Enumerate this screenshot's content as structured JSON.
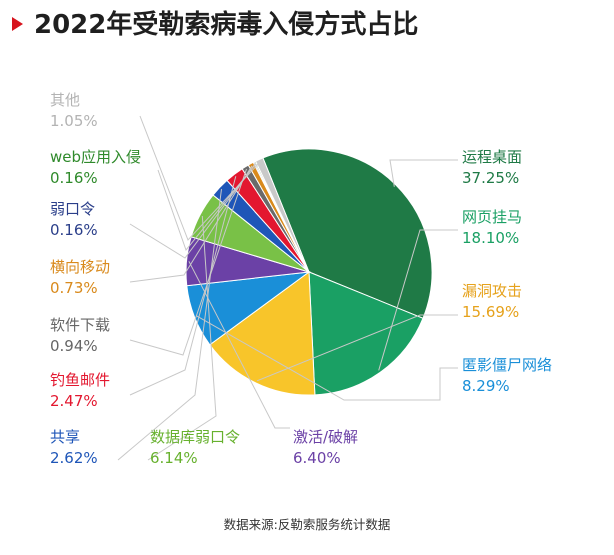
{
  "title": "2022年受勒索病毒入侵方式占比",
  "footer": "数据来源:反勒索服务统计数据",
  "chart_data": {
    "type": "pie",
    "title": "2022年受勒索病毒入侵方式占比",
    "slices": [
      {
        "name": "运程桌面",
        "value": 37.25,
        "label": "37.25%",
        "color": "#1f7a46",
        "label_color": "#1f7a46"
      },
      {
        "name": "网页挂马",
        "value": 18.1,
        "label": "18.10%",
        "color": "#1aa064",
        "label_color": "#1aa064"
      },
      {
        "name": "漏洞攻击",
        "value": 15.69,
        "label": "15.69%",
        "color": "#f8c52a",
        "label_color": "#e6a21c"
      },
      {
        "name": "匿影僵尸网络",
        "value": 8.29,
        "label": "8.29%",
        "color": "#1a8fd8",
        "label_color": "#1a8fd8"
      },
      {
        "name": "激活/破解",
        "value": 6.4,
        "label": "6.40%",
        "color": "#6b41a6",
        "label_color": "#6b41a6"
      },
      {
        "name": "数据库弱口令",
        "value": 6.14,
        "label": "6.14%",
        "color": "#79c147",
        "label_color": "#67b12e"
      },
      {
        "name": "共享",
        "value": 2.62,
        "label": "2.62%",
        "color": "#1f56b8",
        "label_color": "#1f56b8"
      },
      {
        "name": "钓鱼邮件",
        "value": 2.47,
        "label": "2.47%",
        "color": "#e3172f",
        "label_color": "#e3172f"
      },
      {
        "name": "软件下载",
        "value": 0.94,
        "label": "0.94%",
        "color": "#6a6a6a",
        "label_color": "#666666"
      },
      {
        "name": "横向移动",
        "value": 0.73,
        "label": "0.73%",
        "color": "#d98a1c",
        "label_color": "#d98a1c"
      },
      {
        "name": "弱口令",
        "value": 0.16,
        "label": "0.16%",
        "color": "#2b3f8a",
        "label_color": "#2b3f8a"
      },
      {
        "name": "web应用入侵",
        "value": 0.16,
        "label": "0.16%",
        "color": "#2f8a2b",
        "label_color": "#2f8a2b"
      },
      {
        "name": "其他",
        "value": 1.05,
        "label": "1.05%",
        "color": "#c9c9c9",
        "label_color": "#b3b3b3"
      }
    ]
  }
}
